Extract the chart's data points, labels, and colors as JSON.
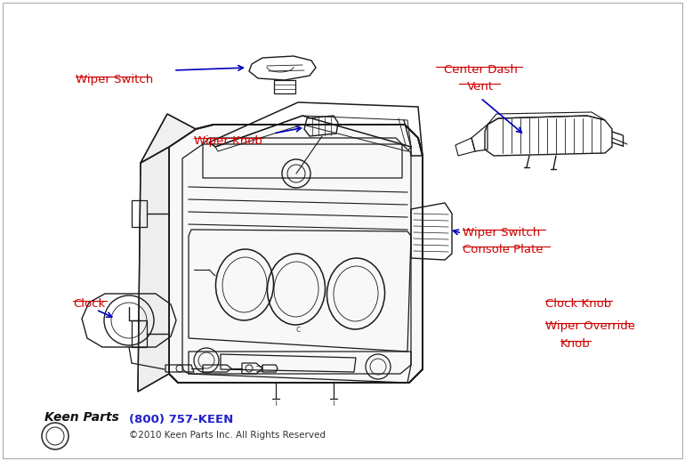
{
  "background_color": "#ffffff",
  "line_color": "#1a1a1a",
  "label_color": "#cc0000",
  "arrow_color": "#0000bb",
  "footer_phone": "(800) 757-KEEN",
  "footer_copy": "©2010 Keen Parts Inc. All Rights Reserved",
  "footer_color": "#2222cc",
  "footer_copy_color": "#333333",
  "labels": {
    "wiper_switch": "Wiper Switch",
    "wiper_knob": "Wiper Knob",
    "center_dash_vent_1": "Center Dash",
    "center_dash_vent_2": "Vent",
    "wiper_switch_console_1": "Wiper Switch",
    "wiper_switch_console_2": "Console Plate",
    "clock": "Clock",
    "clock_knob": "Clock Knob",
    "wiper_override_1": "Wiper Override",
    "wiper_override_2": "Knob"
  },
  "fig_width": 7.7,
  "fig_height": 5.18,
  "dpi": 100
}
